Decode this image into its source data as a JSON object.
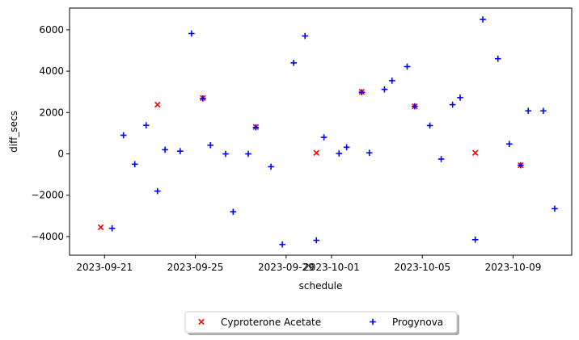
{
  "chart_data": {
    "type": "scatter",
    "xlabel": "schedule",
    "ylabel": "diff_secs",
    "x_tick_labels": [
      "2023-09-21",
      "2023-09-25",
      "2023-09-29",
      "2023-10-01",
      "2023-10-05",
      "2023-10-09"
    ],
    "x_tick_dates": [
      "2023-09-21",
      "2023-09-25",
      "2023-09-29",
      "2023-10-01",
      "2023-10-05",
      "2023-10-09"
    ],
    "xlim": [
      "2023-09-19T11:00",
      "2023-10-11T14:00"
    ],
    "y_ticks": [
      -4000,
      -2000,
      0,
      2000,
      4000,
      6000
    ],
    "y_tick_labels": [
      "−4000",
      "−2000",
      "0",
      "2000",
      "4000",
      "6000"
    ],
    "ylim": [
      -4900,
      7050
    ],
    "grid": false,
    "legend_position": "bottom-center",
    "series": [
      {
        "name": "Cyproterone Acetate",
        "marker": "x",
        "color": "#ff0000",
        "points": [
          [
            "2023-09-20T20:00",
            -3550
          ],
          [
            "2023-09-23T08:00",
            2380
          ],
          [
            "2023-09-25T08:00",
            2700
          ],
          [
            "2023-09-27T16:00",
            1300
          ],
          [
            "2023-09-30T08:00",
            50
          ],
          [
            "2023-10-02T08:00",
            3000
          ],
          [
            "2023-10-04T16:00",
            2300
          ],
          [
            "2023-10-07T08:00",
            50
          ],
          [
            "2023-10-09T08:00",
            -550
          ]
        ]
      },
      {
        "name": "Progynova",
        "marker": "+",
        "color": "#0000ff",
        "points": [
          [
            "2023-09-21T08:00",
            -3600
          ],
          [
            "2023-09-21T20:00",
            900
          ],
          [
            "2023-09-22T08:00",
            -500
          ],
          [
            "2023-09-22T20:00",
            1380
          ],
          [
            "2023-09-23T08:00",
            -1800
          ],
          [
            "2023-09-23T16:00",
            200
          ],
          [
            "2023-09-24T08:00",
            130
          ],
          [
            "2023-09-24T20:00",
            5820
          ],
          [
            "2023-09-25T08:00",
            2680
          ],
          [
            "2023-09-25T16:00",
            420
          ],
          [
            "2023-09-26T08:00",
            0
          ],
          [
            "2023-09-26T16:00",
            -2800
          ],
          [
            "2023-09-27T08:00",
            0
          ],
          [
            "2023-09-27T16:00",
            1280
          ],
          [
            "2023-09-28T08:00",
            -620
          ],
          [
            "2023-09-28T20:00",
            -4380
          ],
          [
            "2023-09-29T08:00",
            4400
          ],
          [
            "2023-09-29T20:00",
            5700
          ],
          [
            "2023-09-30T08:00",
            -4180
          ],
          [
            "2023-09-30T16:00",
            800
          ],
          [
            "2023-10-01T08:00",
            20
          ],
          [
            "2023-10-01T16:00",
            320
          ],
          [
            "2023-10-02T08:00",
            2980
          ],
          [
            "2023-10-02T16:00",
            50
          ],
          [
            "2023-10-03T08:00",
            3120
          ],
          [
            "2023-10-03T16:00",
            3540
          ],
          [
            "2023-10-04T08:00",
            4220
          ],
          [
            "2023-10-04T16:00",
            2300
          ],
          [
            "2023-10-05T08:00",
            1370
          ],
          [
            "2023-10-05T20:00",
            -250
          ],
          [
            "2023-10-06T08:00",
            2380
          ],
          [
            "2023-10-06T16:00",
            2720
          ],
          [
            "2023-10-07T08:00",
            -4150
          ],
          [
            "2023-10-07T16:00",
            6500
          ],
          [
            "2023-10-08T08:00",
            4600
          ],
          [
            "2023-10-08T20:00",
            480
          ],
          [
            "2023-10-09T08:00",
            -550
          ],
          [
            "2023-10-09T16:00",
            2080
          ],
          [
            "2023-10-10T08:00",
            2080
          ],
          [
            "2023-10-10T20:00",
            -2650
          ]
        ]
      }
    ]
  }
}
